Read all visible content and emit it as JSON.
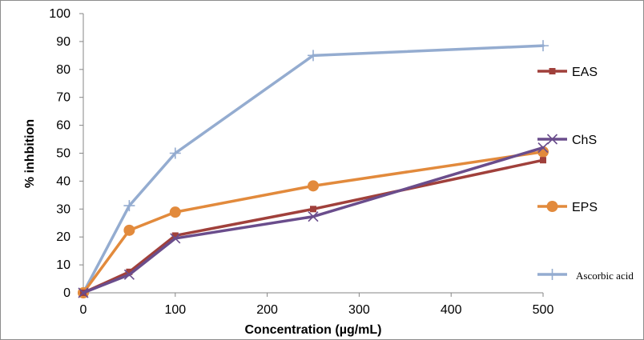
{
  "chart_data": {
    "type": "line",
    "title": "",
    "xlabel": "Concentration (µg/mL)",
    "ylabel": "% inhbition",
    "xlim": [
      0,
      500
    ],
    "ylim": [
      0,
      100
    ],
    "x_ticks": [
      "0",
      "100",
      "200",
      "300",
      "400",
      "500"
    ],
    "y_ticks": [
      "0",
      "10",
      "20",
      "30",
      "40",
      "50",
      "60",
      "70",
      "80",
      "90",
      "100"
    ],
    "grid": false,
    "legend_position": "right",
    "series": [
      {
        "name": "EAS",
        "color": "#a0403b",
        "marker": "square",
        "x": [
          0,
          50,
          100,
          250,
          500
        ],
        "y": [
          0,
          7.5,
          20.5,
          30,
          47.5
        ]
      },
      {
        "name": "ChS",
        "color": "#6a4d8c",
        "marker": "x",
        "x": [
          0,
          50,
          100,
          250,
          500
        ],
        "y": [
          0,
          6.5,
          19.5,
          27.3,
          52
        ]
      },
      {
        "name": "EPS",
        "color": "#e28a3c",
        "marker": "circle",
        "x": [
          0,
          50,
          100,
          250,
          500
        ],
        "y": [
          0,
          22.4,
          28.9,
          38.3,
          50.5
        ]
      },
      {
        "name": "Ascorbic acid",
        "color": "#94acd0",
        "marker": "plus",
        "x": [
          0,
          50,
          100,
          250,
          500
        ],
        "y": [
          0,
          31.2,
          50,
          85,
          88.5
        ]
      }
    ]
  }
}
